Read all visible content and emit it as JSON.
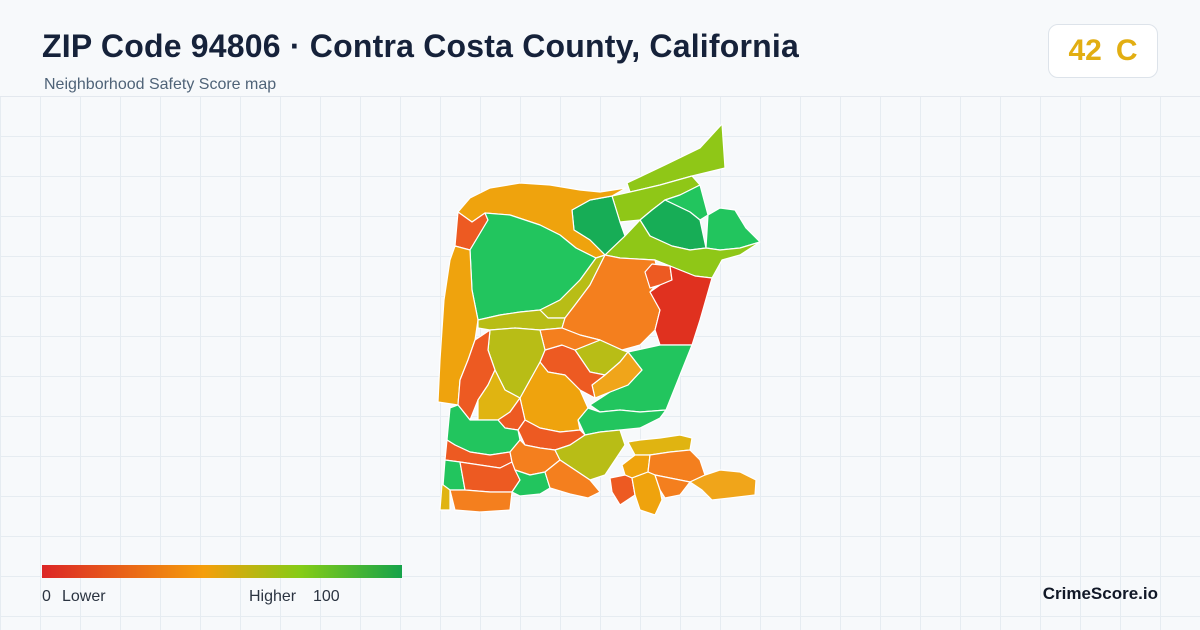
{
  "header": {
    "title": "ZIP Code 94806 · Contra Costa County, California",
    "subtitle": "Neighborhood Safety Score map"
  },
  "score_badge": {
    "score": "42",
    "grade": "C",
    "color": "#e2ae12"
  },
  "legend": {
    "low_value": "0",
    "low_label": "Lower",
    "high_label": "Higher",
    "high_value": "100",
    "colors": [
      "#dc2626",
      "#f59e0b",
      "#84cc16",
      "#16a34a"
    ]
  },
  "brand": {
    "name": "CrimeScore.io"
  },
  "map": {
    "palette": {
      "red": "#e0311f",
      "red_orange": "#ed5a22",
      "orange": "#f47f1e",
      "amber": "#efa30d",
      "yellow": "#e0b411",
      "olive": "#b8bd16",
      "lime": "#8fc717",
      "green": "#22c55e",
      "dark_green": "#17ad56"
    }
  }
}
